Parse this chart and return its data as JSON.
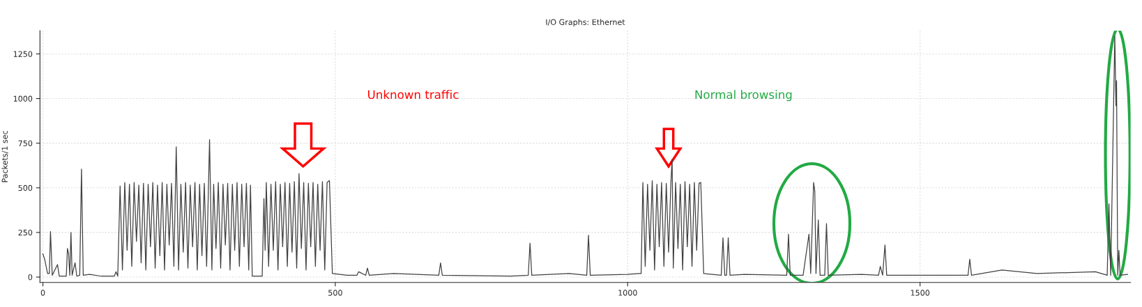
{
  "chart_data": {
    "type": "line",
    "title": "I/O Graphs: Ethernet",
    "ylabel": "Packets/1 sec",
    "annotations": [
      "Unknown traffic",
      "Normal browsing"
    ],
    "xlim": [
      -5,
      1860
    ],
    "ylim": [
      -30,
      1380
    ],
    "xticks": [
      0,
      500,
      1000,
      1500
    ],
    "yticks": [
      0,
      250,
      500,
      750,
      1000,
      1250
    ],
    "grid": true,
    "series": [
      {
        "color": "#404040",
        "x": [
          0,
          3,
          8,
          11,
          13,
          16,
          25,
          28,
          40,
          42,
          44,
          46,
          48,
          50,
          55,
          58,
          63,
          66,
          69,
          80,
          100,
          122,
          125,
          128,
          132,
          136,
          140,
          144,
          148,
          152,
          156,
          160,
          164,
          168,
          172,
          176,
          180,
          184,
          188,
          192,
          196,
          200,
          204,
          208,
          212,
          216,
          220,
          224,
          228,
          232,
          236,
          240,
          244,
          248,
          252,
          256,
          260,
          264,
          268,
          272,
          276,
          280,
          285,
          289,
          292,
          296,
          300,
          304,
          308,
          312,
          316,
          320,
          324,
          328,
          332,
          336,
          340,
          344,
          348,
          352,
          355,
          358,
          375,
          378,
          380,
          382,
          386,
          390,
          394,
          398,
          402,
          406,
          410,
          414,
          418,
          422,
          426,
          430,
          434,
          438,
          442,
          446,
          450,
          454,
          458,
          462,
          466,
          470,
          474,
          478,
          482,
          486,
          490,
          495,
          520,
          537,
          540,
          552,
          555,
          558,
          600,
          677,
          680,
          683,
          800,
          830,
          833,
          836,
          900,
          930,
          933,
          936,
          1000,
          1020,
          1023,
          1026,
          1030,
          1034,
          1038,
          1042,
          1046,
          1050,
          1054,
          1058,
          1062,
          1066,
          1070,
          1074,
          1076,
          1078,
          1082,
          1086,
          1090,
          1094,
          1098,
          1102,
          1106,
          1110,
          1114,
          1118,
          1122,
          1125,
          1130,
          1160,
          1163,
          1166,
          1169,
          1172,
          1175,
          1200,
          1272,
          1275,
          1278,
          1300,
          1310,
          1313,
          1318,
          1320,
          1322,
          1326,
          1329,
          1337,
          1340,
          1343,
          1400,
          1429,
          1432,
          1436,
          1440,
          1443,
          1500,
          1582,
          1585,
          1588,
          1640,
          1700,
          1800,
          1820,
          1823,
          1826,
          1833,
          1835,
          1836,
          1838,
          1840,
          1842,
          1855
        ],
        "values": [
          130,
          100,
          20,
          20,
          255,
          10,
          70,
          5,
          5,
          160,
          130,
          10,
          250,
          10,
          80,
          5,
          10,
          605,
          10,
          15,
          5,
          5,
          30,
          5,
          510,
          40,
          530,
          150,
          520,
          60,
          530,
          200,
          515,
          80,
          525,
          40,
          520,
          170,
          530,
          50,
          515,
          120,
          530,
          40,
          520,
          180,
          525,
          60,
          730,
          40,
          520,
          140,
          530,
          50,
          515,
          170,
          530,
          40,
          520,
          120,
          525,
          60,
          770,
          40,
          520,
          160,
          530,
          50,
          520,
          180,
          525,
          40,
          520,
          150,
          530,
          60,
          520,
          170,
          525,
          40,
          515,
          5,
          5,
          440,
          150,
          530,
          60,
          520,
          150,
          535,
          40,
          520,
          170,
          530,
          60,
          525,
          140,
          535,
          50,
          580,
          160,
          530,
          40,
          525,
          170,
          530,
          60,
          520,
          150,
          535,
          40,
          530,
          540,
          20,
          10,
          10,
          30,
          10,
          50,
          10,
          20,
          10,
          80,
          10,
          5,
          10,
          190,
          10,
          20,
          10,
          235,
          10,
          15,
          20,
          20,
          530,
          60,
          520,
          150,
          540,
          40,
          520,
          170,
          530,
          60,
          525,
          140,
          535,
          660,
          50,
          530,
          160,
          520,
          40,
          535,
          170,
          520,
          60,
          530,
          150,
          525,
          530,
          20,
          10,
          220,
          10,
          10,
          220,
          10,
          15,
          10,
          240,
          10,
          10,
          240,
          20,
          530,
          480,
          20,
          320,
          10,
          10,
          300,
          10,
          15,
          10,
          60,
          10,
          180,
          10,
          10,
          10,
          100,
          10,
          40,
          20,
          30,
          10,
          410,
          10,
          1350,
          960,
          1100,
          10,
          150,
          10,
          15
        ]
      }
    ]
  }
}
